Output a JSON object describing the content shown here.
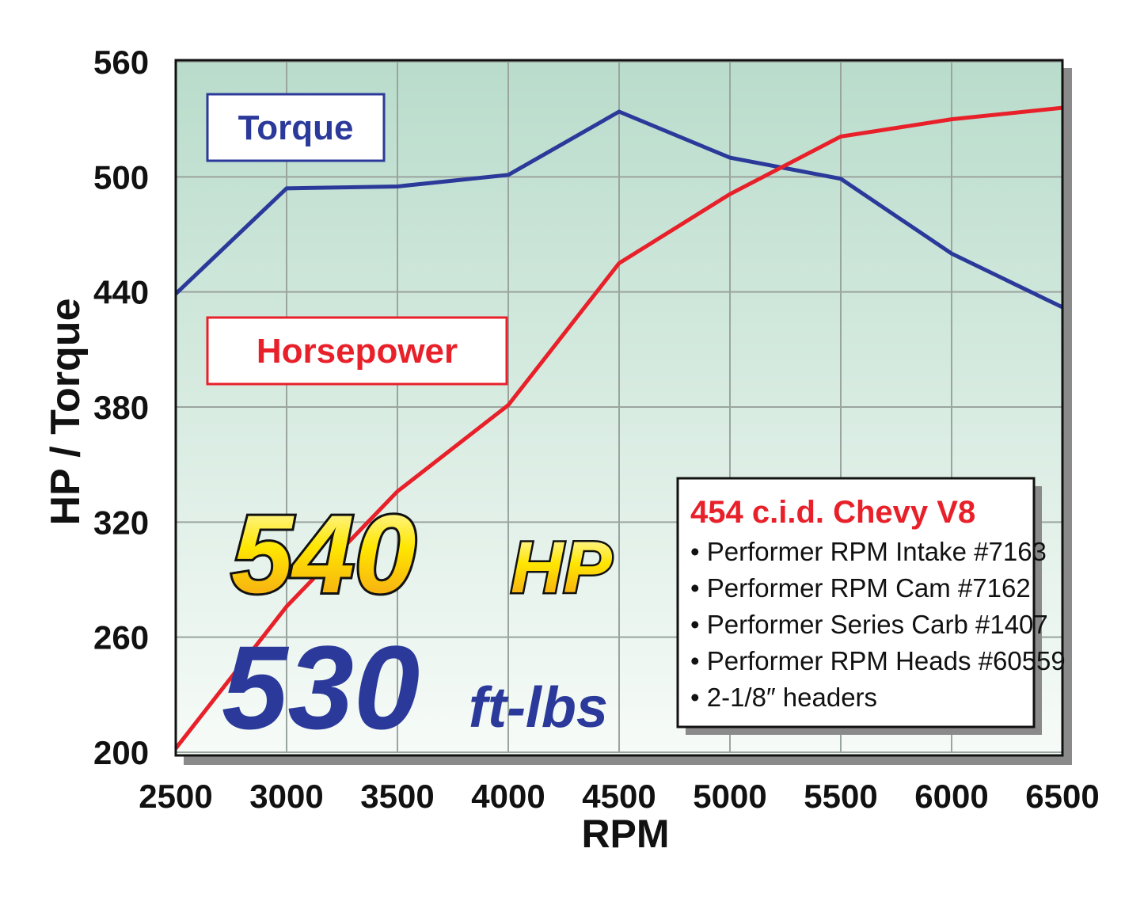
{
  "chart_data": {
    "type": "line",
    "x": [
      2500,
      3000,
      3500,
      4000,
      4500,
      5000,
      5500,
      6000,
      6500
    ],
    "series": [
      {
        "name": "Torque",
        "color": "#2b3a9a",
        "values": [
          439,
          494,
          495,
          501,
          534,
          510,
          499,
          460,
          432
        ]
      },
      {
        "name": "Horsepower",
        "color": "#e8202a",
        "values": [
          202,
          276,
          336,
          381,
          455,
          491,
          521,
          530,
          536
        ]
      }
    ],
    "xlim": [
      2500,
      6500
    ],
    "xticks": [
      2500,
      3000,
      3500,
      4000,
      4500,
      5000,
      5500,
      6000,
      6500
    ],
    "ylim": [
      200,
      560
    ],
    "yticks": [
      200,
      260,
      320,
      380,
      440,
      500,
      560
    ],
    "xlabel": "RPM",
    "ylabel": "HP / Torque",
    "grid": true,
    "annotations": [
      "540",
      "HP",
      "530",
      "ft-lbs"
    ],
    "info_box": {
      "title": "454 c.i.d. Chevy V8",
      "items": [
        "• Performer RPM Intake #7163",
        "• Performer RPM Cam #7162",
        "• Performer Series Carb #1407",
        "• Performer RPM Heads #60559",
        "• 2-1/8″ headers"
      ]
    }
  }
}
